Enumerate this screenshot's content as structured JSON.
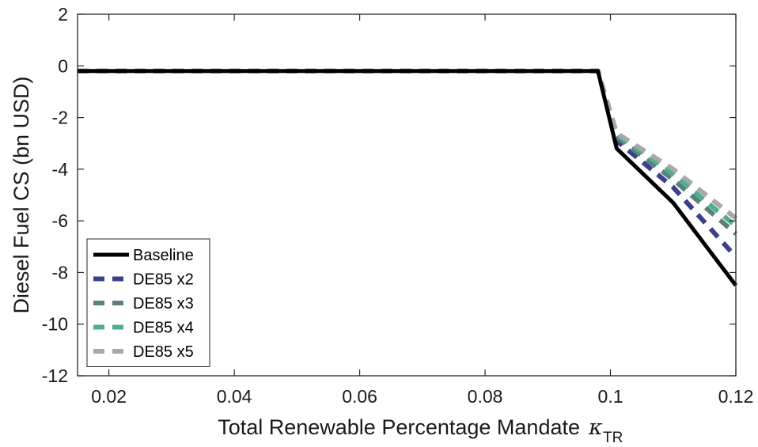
{
  "chart_data": {
    "type": "line",
    "title": "",
    "xlabel": "Total Renewable Percentage Mandate",
    "xlabel_symbol": "κ",
    "xlabel_subscript": "TR",
    "ylabel": "Diesel Fuel CS (bn USD)",
    "xlim": [
      0.015,
      0.12
    ],
    "ylim": [
      -12,
      2
    ],
    "xticks": [
      0.02,
      0.04,
      0.06,
      0.08,
      0.1,
      0.12
    ],
    "xtick_labels": [
      "0.02",
      "0.04",
      "0.06",
      "0.08",
      "0.1",
      "0.12"
    ],
    "yticks": [
      2,
      0,
      -2,
      -4,
      -6,
      -8,
      -10,
      -12
    ],
    "ytick_labels": [
      "2",
      "0",
      "-2",
      "-4",
      "-6",
      "-8",
      "-10",
      "-12"
    ],
    "grid": false,
    "legend_position": "bottom-left",
    "series": [
      {
        "name": "Baseline",
        "color": "#000000",
        "style": "solid",
        "x": [
          0.015,
          0.098,
          0.101,
          0.11,
          0.12
        ],
        "y": [
          -0.2,
          -0.2,
          -3.2,
          -5.3,
          -8.5
        ]
      },
      {
        "name": "DE85 x2",
        "color": "#3d3f8a",
        "style": "dashed",
        "x": [
          0.015,
          0.098,
          0.101,
          0.11,
          0.12
        ],
        "y": [
          -0.2,
          -0.2,
          -2.9,
          -4.7,
          -7.4
        ]
      },
      {
        "name": "DE85 x3",
        "color": "#5d7f80",
        "style": "dashed",
        "x": [
          0.015,
          0.098,
          0.101,
          0.11,
          0.12
        ],
        "y": [
          -0.2,
          -0.2,
          -2.75,
          -4.4,
          -6.5
        ]
      },
      {
        "name": "DE85 x4",
        "color": "#4fae8c",
        "style": "dashed",
        "x": [
          0.015,
          0.098,
          0.101,
          0.11,
          0.12
        ],
        "y": [
          -0.2,
          -0.2,
          -2.65,
          -4.2,
          -6.2
        ]
      },
      {
        "name": "DE85 x5",
        "color": "#a8a8a8",
        "style": "dashed",
        "x": [
          0.015,
          0.098,
          0.101,
          0.11,
          0.12
        ],
        "y": [
          -0.2,
          -0.2,
          -2.6,
          -4.0,
          -5.9
        ]
      }
    ]
  }
}
